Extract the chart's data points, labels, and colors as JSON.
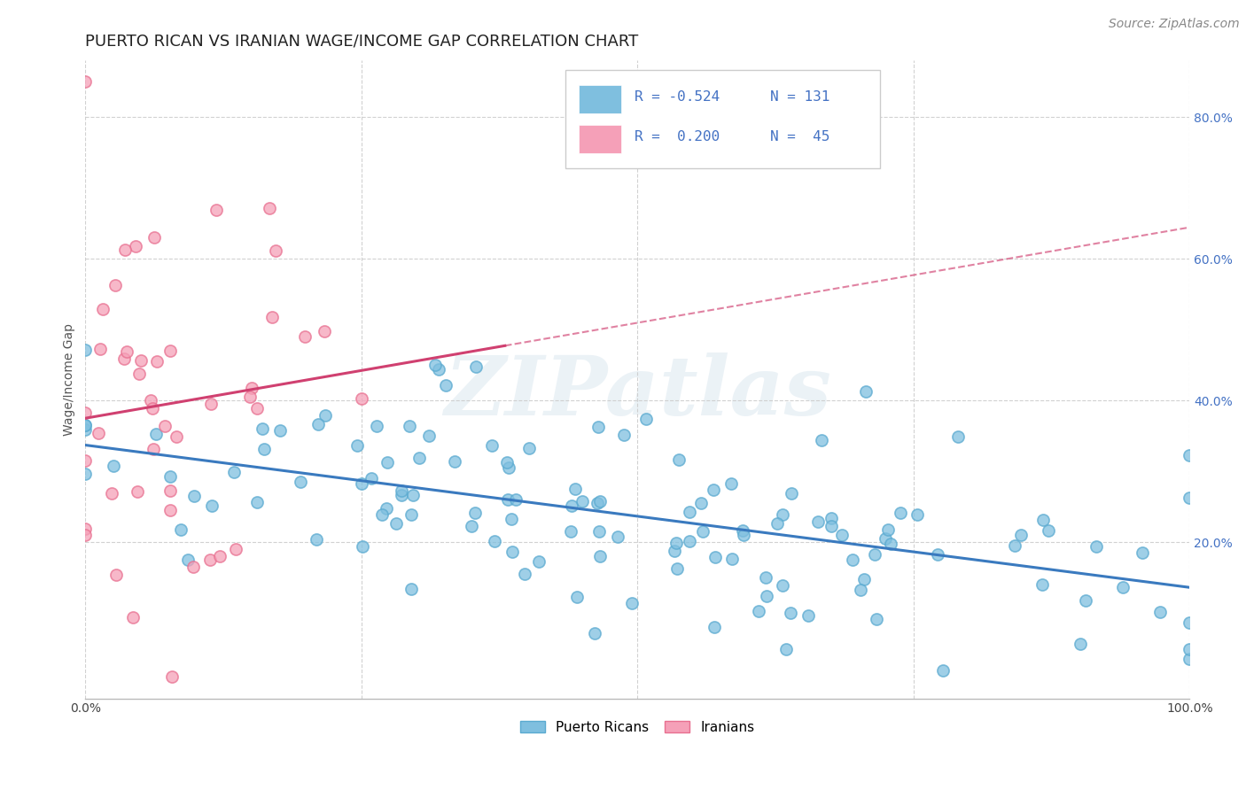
{
  "title": "PUERTO RICAN VS IRANIAN WAGE/INCOME GAP CORRELATION CHART",
  "source": "Source: ZipAtlas.com",
  "ylabel": "Wage/Income Gap",
  "x_min": 0.0,
  "x_max": 1.0,
  "y_min": -0.02,
  "y_max": 0.88,
  "y_ticks": [
    0.2,
    0.4,
    0.6,
    0.8
  ],
  "y_tick_labels": [
    "20.0%",
    "40.0%",
    "60.0%",
    "80.0%"
  ],
  "x_ticks": [
    0.0,
    0.25,
    0.5,
    0.75,
    1.0
  ],
  "x_tick_labels": [
    "0.0%",
    "",
    "",
    "",
    "100.0%"
  ],
  "blue_color": "#7fbfdf",
  "blue_edge_color": "#5aaad0",
  "pink_color": "#f5a0b8",
  "pink_edge_color": "#e87090",
  "blue_line_color": "#3a7abf",
  "pink_line_color": "#d04070",
  "legend_blue_label": "Puerto Ricans",
  "legend_pink_label": "Iranians",
  "watermark_text": "ZIPatlas",
  "blue_r": -0.524,
  "blue_n": 131,
  "pink_r": 0.2,
  "pink_n": 45,
  "title_fontsize": 13,
  "label_fontsize": 10,
  "tick_fontsize": 10,
  "source_fontsize": 10,
  "background_color": "#ffffff",
  "grid_color": "#cccccc",
  "title_color": "#222222",
  "axis_label_color": "#555555",
  "tick_color_right": "#4472c4",
  "tick_color_bottom": "#444444",
  "legend_text_color": "#4472c4"
}
